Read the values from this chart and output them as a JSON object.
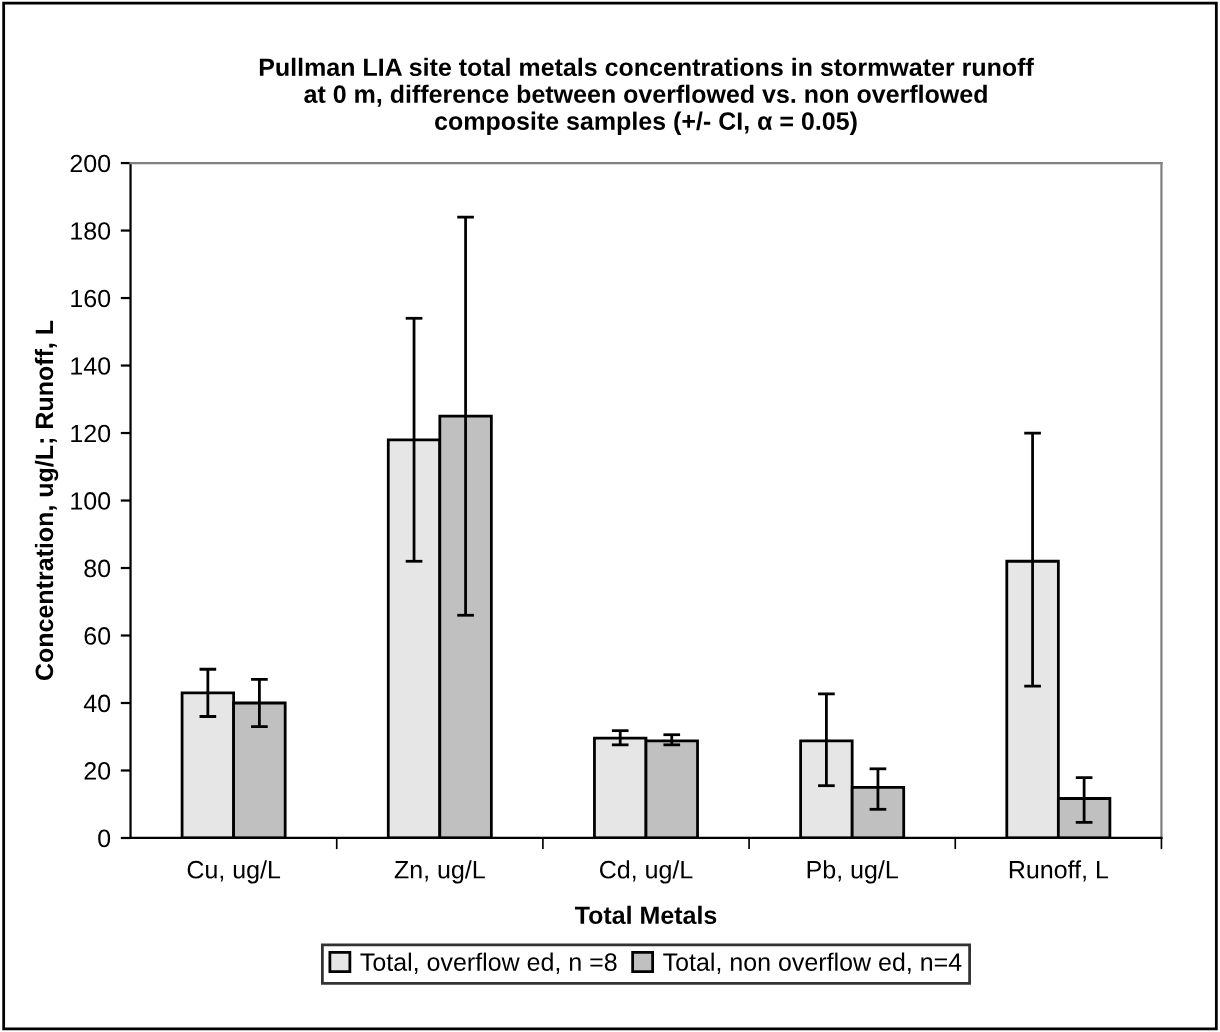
{
  "chart_data": {
    "type": "bar",
    "title": "Pullman LIA site total metals concentrations in stormwater runoff\nat 0 m, difference between overflowed vs. non overflowed\ncomposite samples (+/- CI, α = 0.05)",
    "xlabel": "Total Metals",
    "ylabel": "Concentration, ug/L; Runoff, L",
    "categories": [
      "Cu, ug/L",
      "Zn, ug/L",
      "Cd, ug/L",
      "Pb, ug/L",
      "Runoff, L"
    ],
    "series": [
      {
        "name": "Total, overflow ed, n =8",
        "color": "#e6e6e6",
        "values": [
          43,
          118,
          29.6,
          28.8,
          82
        ],
        "errors": [
          [
            36,
            50
          ],
          [
            82,
            154
          ],
          [
            27.6,
            31.8
          ],
          [
            15.5,
            42.7
          ],
          [
            45,
            120
          ]
        ]
      },
      {
        "name": "Total, non overflow ed, n=4",
        "color": "#c0c0c0",
        "values": [
          40,
          125,
          28.8,
          15,
          11.7
        ],
        "errors": [
          [
            33,
            47
          ],
          [
            66,
            184
          ],
          [
            27.6,
            30.6
          ],
          [
            8.5,
            20.5
          ],
          [
            4.6,
            17.9
          ]
        ]
      }
    ],
    "ylim": [
      0,
      200
    ],
    "yticks": [
      0,
      20,
      40,
      60,
      80,
      100,
      120,
      140,
      160,
      180,
      200
    ],
    "grid": false,
    "legend": "bottom"
  }
}
